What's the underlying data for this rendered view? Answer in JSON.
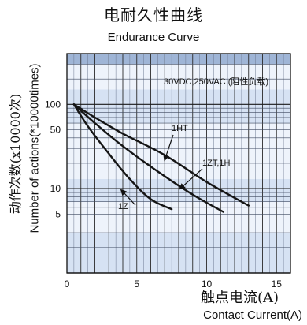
{
  "chart_data": {
    "type": "line",
    "title": "电耐久性曲线",
    "subtitle": "Endurance Curve",
    "ylabel_cn": "动作次数(x10000次)",
    "ylabel_en": "Number of actions(*10000times)",
    "xlabel_cn": "触点电流(A)",
    "xlabel_en": "Contact Current(A)",
    "annotation": "30VDC,250VAC (阻性负载)",
    "x_scale": "linear",
    "y_scale": "log",
    "xlim": [
      0,
      16
    ],
    "ylim": [
      1,
      400
    ],
    "x_ticks": [
      0,
      5,
      10,
      15
    ],
    "x_tick_labels": [
      "0",
      "5",
      "10",
      "15"
    ],
    "y_ticks": [
      5,
      10,
      50,
      100
    ],
    "y_tick_labels": [
      "5",
      "10",
      "50",
      "100"
    ],
    "grid": true,
    "series": [
      {
        "name": "1HT",
        "x": [
          0.5,
          2,
          4,
          7,
          10,
          13
        ],
        "y": [
          100,
          70,
          45,
          25,
          12,
          6.3
        ]
      },
      {
        "name": "1ZT,1H",
        "x": [
          0.5,
          2,
          4,
          6.5,
          9,
          11.2
        ],
        "y": [
          100,
          60,
          32,
          16,
          8.5,
          5.3
        ]
      },
      {
        "name": "1Z",
        "x": [
          0.5,
          1.5,
          3,
          4.5,
          6,
          7.5
        ],
        "y": [
          100,
          55,
          26,
          13,
          7.5,
          5.7
        ]
      }
    ]
  }
}
